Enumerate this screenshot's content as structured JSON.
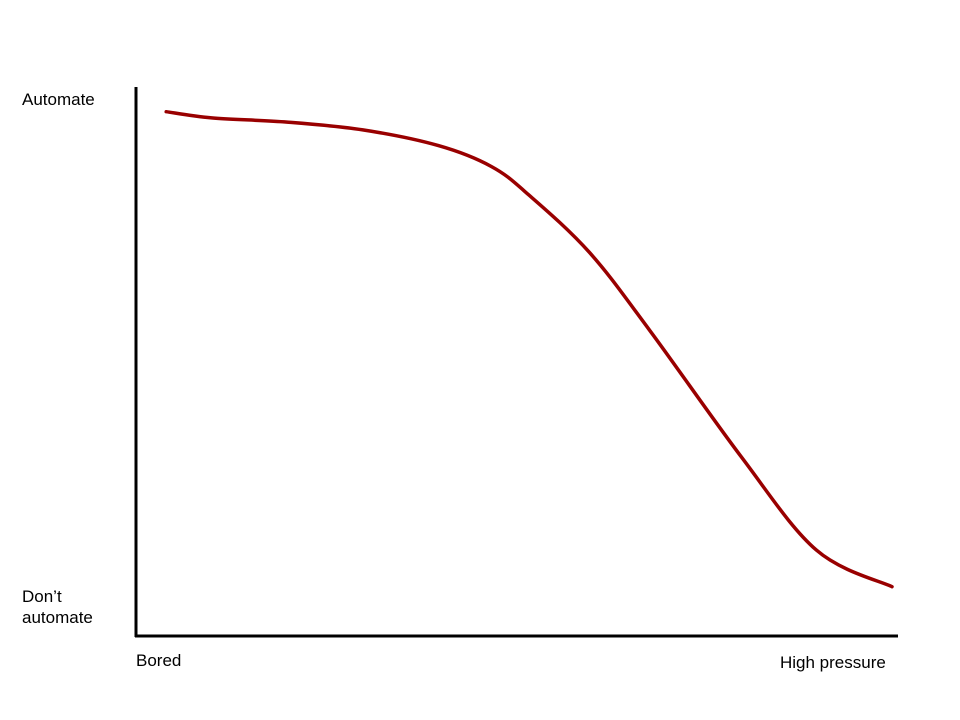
{
  "chart_data": {
    "type": "line",
    "x_label_left": "Bored",
    "x_label_right": "High pressure",
    "y_label_top": "Automate",
    "y_label_bottom_line1": "Don’t",
    "y_label_bottom_line2": "automate",
    "xlim": [
      0,
      1
    ],
    "ylim": [
      0,
      1
    ],
    "grid": false,
    "series": [
      {
        "color": "#990000",
        "points": [
          {
            "x": 0.04,
            "y": 0.97
          },
          {
            "x": 0.1,
            "y": 0.958
          },
          {
            "x": 0.2,
            "y": 0.95
          },
          {
            "x": 0.3,
            "y": 0.935
          },
          {
            "x": 0.4,
            "y": 0.905
          },
          {
            "x": 0.47,
            "y": 0.865
          },
          {
            "x": 0.52,
            "y": 0.81
          },
          {
            "x": 0.6,
            "y": 0.7
          },
          {
            "x": 0.68,
            "y": 0.55
          },
          {
            "x": 0.8,
            "y": 0.31
          },
          {
            "x": 0.9,
            "y": 0.13
          },
          {
            "x": 1.0,
            "y": 0.06
          }
        ]
      }
    ]
  }
}
